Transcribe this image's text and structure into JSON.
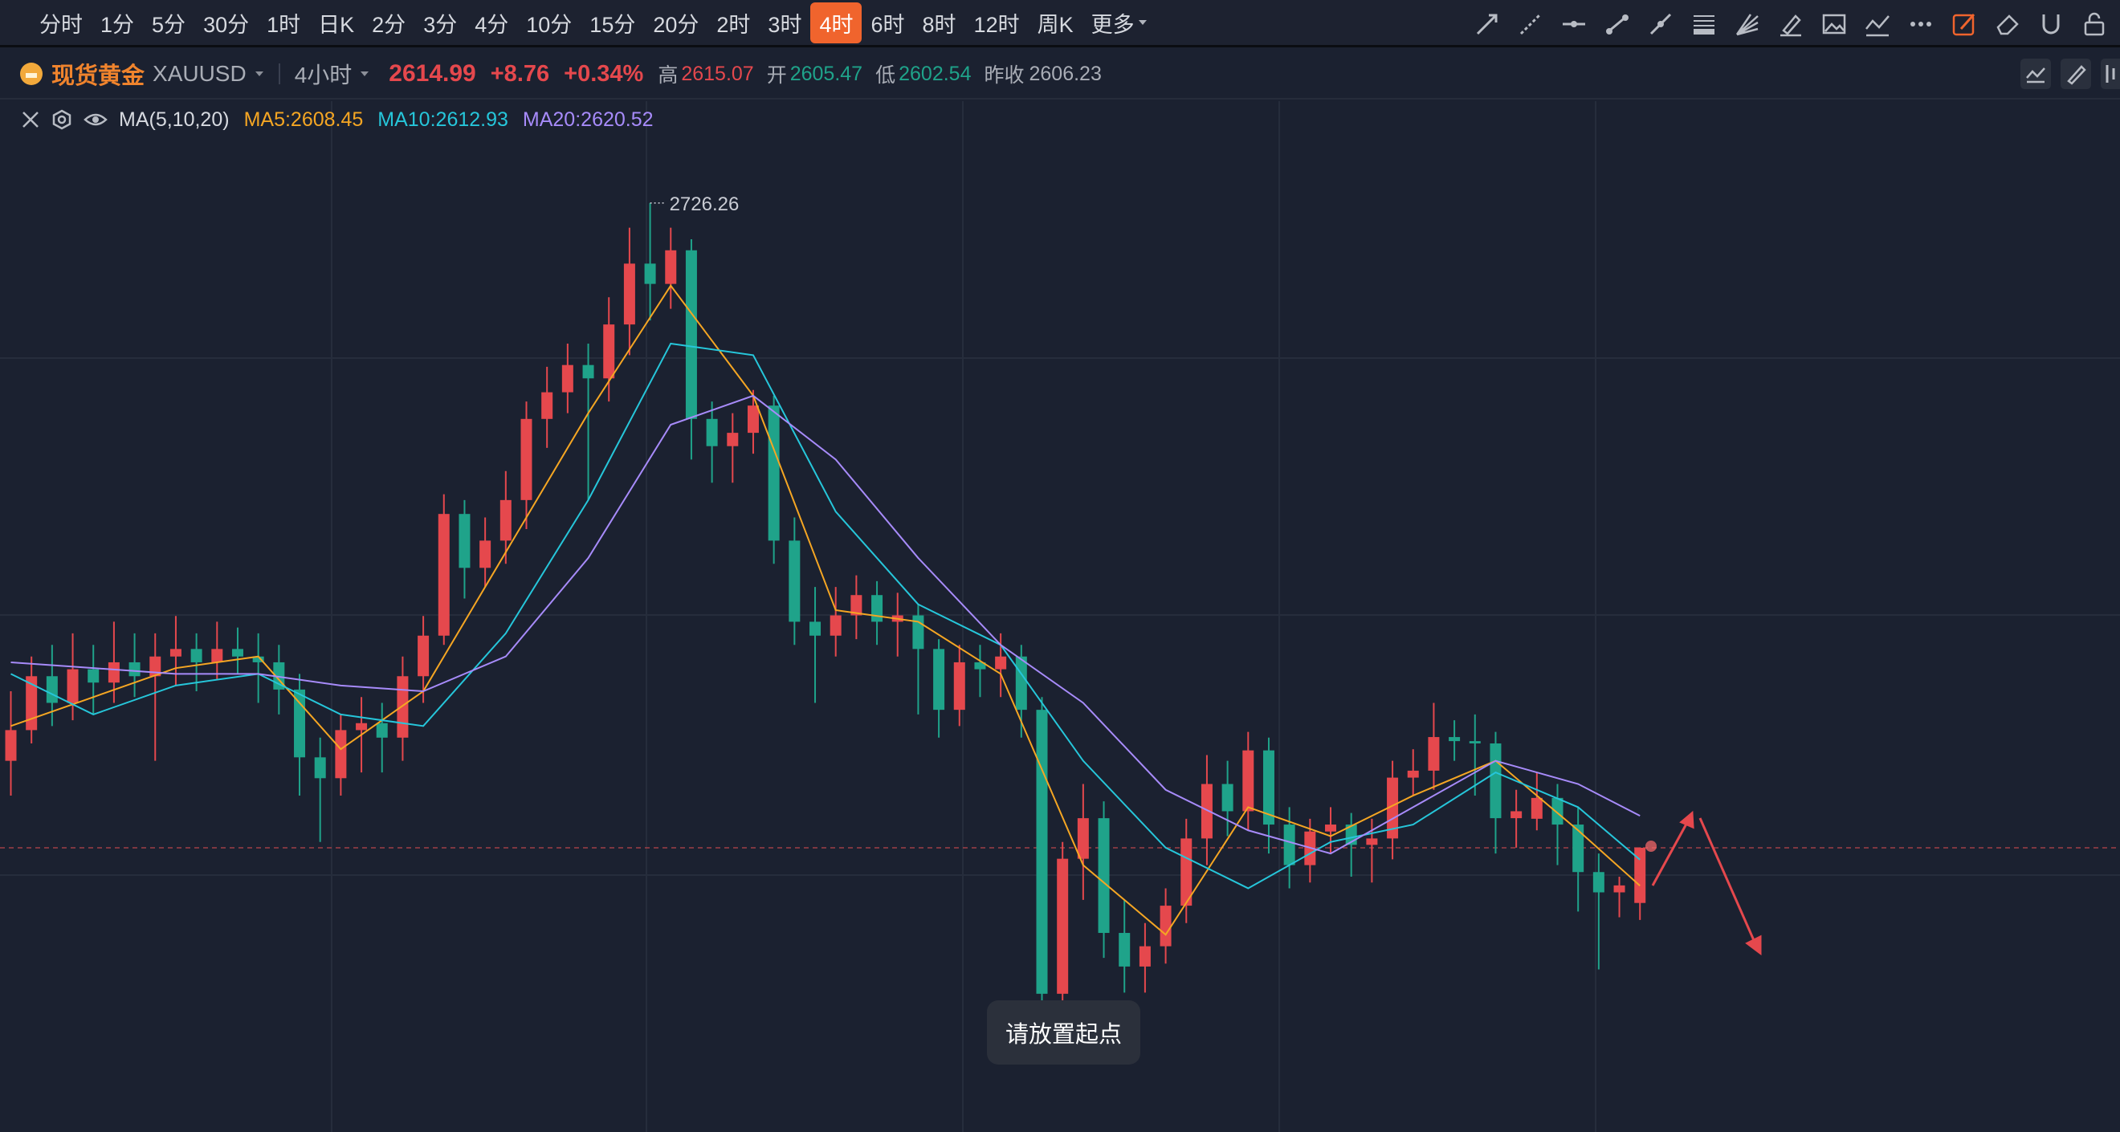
{
  "toolbar": {
    "periods": [
      "分时",
      "1分",
      "5分",
      "30分",
      "1时",
      "日K",
      "2分",
      "3分",
      "4分",
      "10分",
      "15分",
      "20分",
      "2时",
      "3时",
      "4时",
      "6时",
      "8时",
      "12时",
      "周K"
    ],
    "active_period": "4时",
    "more": "更多"
  },
  "symbol": {
    "name": "现货黄金",
    "code": "XAUUSD",
    "interval": "4小时",
    "price": "2614.99",
    "change": "+8.76",
    "change_pct": "+0.34%",
    "stats": [
      {
        "label": "高",
        "value": "2615.07"
      },
      {
        "label": "开",
        "value": "2605.47"
      },
      {
        "label": "低",
        "value": "2602.54"
      },
      {
        "label": "昨收",
        "value": "2606.23"
      }
    ]
  },
  "indicator": {
    "name": "MA(5,10,20)"
  },
  "tooltip": "请放置起点",
  "chart_data": {
    "type": "candlestick",
    "up_color": "#e5484d",
    "down_color": "#1fa38a",
    "candles": [
      [
        2630,
        2642,
        2624,
        2635.3
      ],
      [
        2635.3,
        2648,
        2633,
        2644.6
      ],
      [
        2644.6,
        2650,
        2636,
        2640
      ],
      [
        2640,
        2652,
        2637,
        2645.8
      ],
      [
        2645.8,
        2650,
        2638,
        2643.5
      ],
      [
        2643.5,
        2654,
        2640,
        2647
      ],
      [
        2647,
        2652,
        2641,
        2644.6
      ],
      [
        2644.6,
        2652,
        2630,
        2648
      ],
      [
        2648,
        2655,
        2643,
        2649.3
      ],
      [
        2649.3,
        2652,
        2642,
        2647
      ],
      [
        2647,
        2654,
        2644,
        2649.3
      ],
      [
        2649.3,
        2653,
        2645,
        2648
      ],
      [
        2648,
        2652,
        2640,
        2647
      ],
      [
        2647,
        2650,
        2638,
        2642.3
      ],
      [
        2642.3,
        2645,
        2624,
        2630.6
      ],
      [
        2630.6,
        2634,
        2616,
        2627
      ],
      [
        2627,
        2638,
        2624,
        2635.3
      ],
      [
        2635.3,
        2641,
        2628,
        2636.5
      ],
      [
        2636.5,
        2640,
        2628,
        2634
      ],
      [
        2634,
        2648,
        2630,
        2644.6
      ],
      [
        2644.6,
        2655,
        2640,
        2651.6
      ],
      [
        2651.6,
        2676,
        2650,
        2672.6
      ],
      [
        2672.6,
        2675,
        2658,
        2663.3
      ],
      [
        2663.3,
        2672,
        2660,
        2668
      ],
      [
        2668,
        2680,
        2664,
        2675
      ],
      [
        2675,
        2692,
        2670,
        2689
      ],
      [
        2689,
        2698,
        2684,
        2693.6
      ],
      [
        2693.6,
        2702,
        2690,
        2698.3
      ],
      [
        2698.3,
        2702,
        2675,
        2696
      ],
      [
        2696,
        2710,
        2692,
        2705.3
      ],
      [
        2705.3,
        2722,
        2700,
        2715.8
      ],
      [
        2715.8,
        2726.26,
        2706,
        2712.3
      ],
      [
        2712.3,
        2722,
        2708,
        2718.1
      ],
      [
        2718.1,
        2720,
        2682,
        2689
      ],
      [
        2689,
        2692,
        2678,
        2684.3
      ],
      [
        2684.3,
        2690,
        2678,
        2686.6
      ],
      [
        2686.6,
        2694,
        2683,
        2691.3
      ],
      [
        2691.3,
        2693,
        2664,
        2668
      ],
      [
        2668,
        2672,
        2650,
        2654
      ],
      [
        2654,
        2660,
        2640,
        2651.6
      ],
      [
        2651.6,
        2660,
        2648,
        2655.1
      ],
      [
        2655.1,
        2662,
        2651,
        2658.6
      ],
      [
        2658.6,
        2661,
        2650,
        2654
      ],
      [
        2654,
        2659,
        2648,
        2655.1
      ],
      [
        2655.1,
        2657,
        2638,
        2649.3
      ],
      [
        2649.3,
        2651,
        2634,
        2638.8
      ],
      [
        2638.8,
        2650,
        2636,
        2647
      ],
      [
        2647,
        2650,
        2641,
        2645.8
      ],
      [
        2645.8,
        2652,
        2641,
        2648
      ],
      [
        2648,
        2650,
        2634,
        2638.8
      ],
      [
        2638.8,
        2641,
        2583,
        2589.8
      ],
      [
        2589.8,
        2616,
        2588,
        2613.1
      ],
      [
        2613.1,
        2626,
        2606,
        2620.1
      ],
      [
        2620.1,
        2623,
        2596,
        2600.3
      ],
      [
        2600.3,
        2606,
        2590,
        2594.5
      ],
      [
        2594.5,
        2602,
        2590,
        2598
      ],
      [
        2598,
        2608,
        2595,
        2605
      ],
      [
        2605,
        2620,
        2602,
        2616.6
      ],
      [
        2616.6,
        2631,
        2612,
        2626
      ],
      [
        2626,
        2630,
        2617,
        2621.3
      ],
      [
        2621.3,
        2635,
        2618,
        2631.8
      ],
      [
        2631.8,
        2634,
        2614,
        2619
      ],
      [
        2619,
        2622,
        2608,
        2612
      ],
      [
        2612,
        2620,
        2609,
        2617.8
      ],
      [
        2617.8,
        2622,
        2614,
        2619
      ],
      [
        2619,
        2621,
        2610,
        2615.5
      ],
      [
        2615.5,
        2620,
        2609,
        2616.6
      ],
      [
        2616.6,
        2630,
        2613,
        2627.1
      ],
      [
        2627.1,
        2632,
        2624,
        2628.3
      ],
      [
        2628.3,
        2640,
        2625,
        2634.1
      ],
      [
        2634.1,
        2637,
        2630,
        2633.4
      ],
      [
        2633.4,
        2638,
        2624,
        2633
      ],
      [
        2633,
        2635,
        2614,
        2620.1
      ],
      [
        2620.1,
        2625,
        2615,
        2621.3
      ],
      [
        2620,
        2628,
        2618,
        2623.6
      ],
      [
        2623.6,
        2626,
        2612,
        2619
      ],
      [
        2619,
        2622,
        2604,
        2610.8
      ],
      [
        2610.8,
        2614,
        2594,
        2607.3
      ],
      [
        2607.3,
        2610,
        2603,
        2608.5
      ],
      [
        2605.47,
        2615.07,
        2602.54,
        2614.99
      ]
    ],
    "series": [
      {
        "label": "MA5:2608.45",
        "color": "#f5a623",
        "x": [
          0,
          4,
          8,
          12,
          16,
          20,
          24,
          28,
          32,
          36,
          40,
          44,
          48,
          52,
          56,
          60,
          64,
          68,
          72,
          76,
          79
        ],
        "values": [
          2636,
          2641,
          2646,
          2648,
          2632,
          2642,
          2666,
          2690,
          2712,
          2693,
          2656,
          2654,
          2645,
          2612,
          2600,
          2622,
          2617,
          2624,
          2630,
          2618,
          2608.45
        ]
      },
      {
        "label": "MA10:2612.93",
        "color": "#26c6da",
        "x": [
          0,
          4,
          8,
          12,
          16,
          20,
          24,
          28,
          32,
          36,
          40,
          44,
          48,
          52,
          56,
          60,
          64,
          68,
          72,
          76,
          79
        ],
        "values": [
          2645,
          2638,
          2643,
          2645,
          2638,
          2636,
          2652,
          2675,
          2702,
          2700,
          2673,
          2657,
          2650,
          2630,
          2615,
          2608,
          2616,
          2619,
          2628,
          2622,
          2612.93
        ]
      },
      {
        "label": "MA20:2620.52",
        "color": "#a78bfa",
        "x": [
          0,
          4,
          8,
          12,
          16,
          20,
          24,
          28,
          32,
          36,
          40,
          44,
          48,
          52,
          56,
          60,
          64,
          68,
          72,
          76,
          79
        ],
        "values": [
          2647,
          2646,
          2645,
          2645,
          2643,
          2642,
          2648,
          2665,
          2688,
          2693,
          2682,
          2665,
          2650,
          2640,
          2625,
          2618,
          2614,
          2622,
          2630,
          2626,
          2620.52
        ]
      }
    ]
  }
}
